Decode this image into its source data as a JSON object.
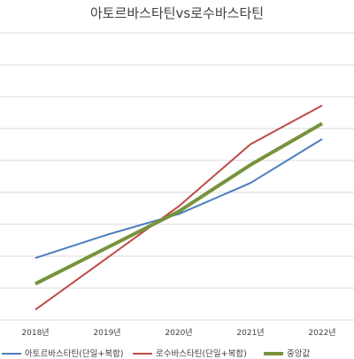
{
  "chart_data": {
    "type": "line",
    "title": "아토르바스타틴vs로수바스타틴",
    "categories": [
      "2018년",
      "2019년",
      "2020년",
      "2021년",
      "2022년"
    ],
    "series": [
      {
        "name": "아토르바스타틴(단일+복합)",
        "values": [
          2.4,
          3.3,
          4.1,
          5.3,
          7.0
        ],
        "color": "#4a7ebb"
      },
      {
        "name": "로수바스타틴(단일+복합)",
        "values": [
          0.4,
          2.4,
          4.4,
          6.8,
          8.3
        ],
        "color": "#be4b48"
      },
      {
        "name": "중앙값",
        "values": [
          1.4,
          2.8,
          4.2,
          6.0,
          7.6
        ],
        "color": "#77933c"
      }
    ],
    "ylim": [
      0,
      10
    ],
    "grid": true,
    "legend": "bottom"
  }
}
